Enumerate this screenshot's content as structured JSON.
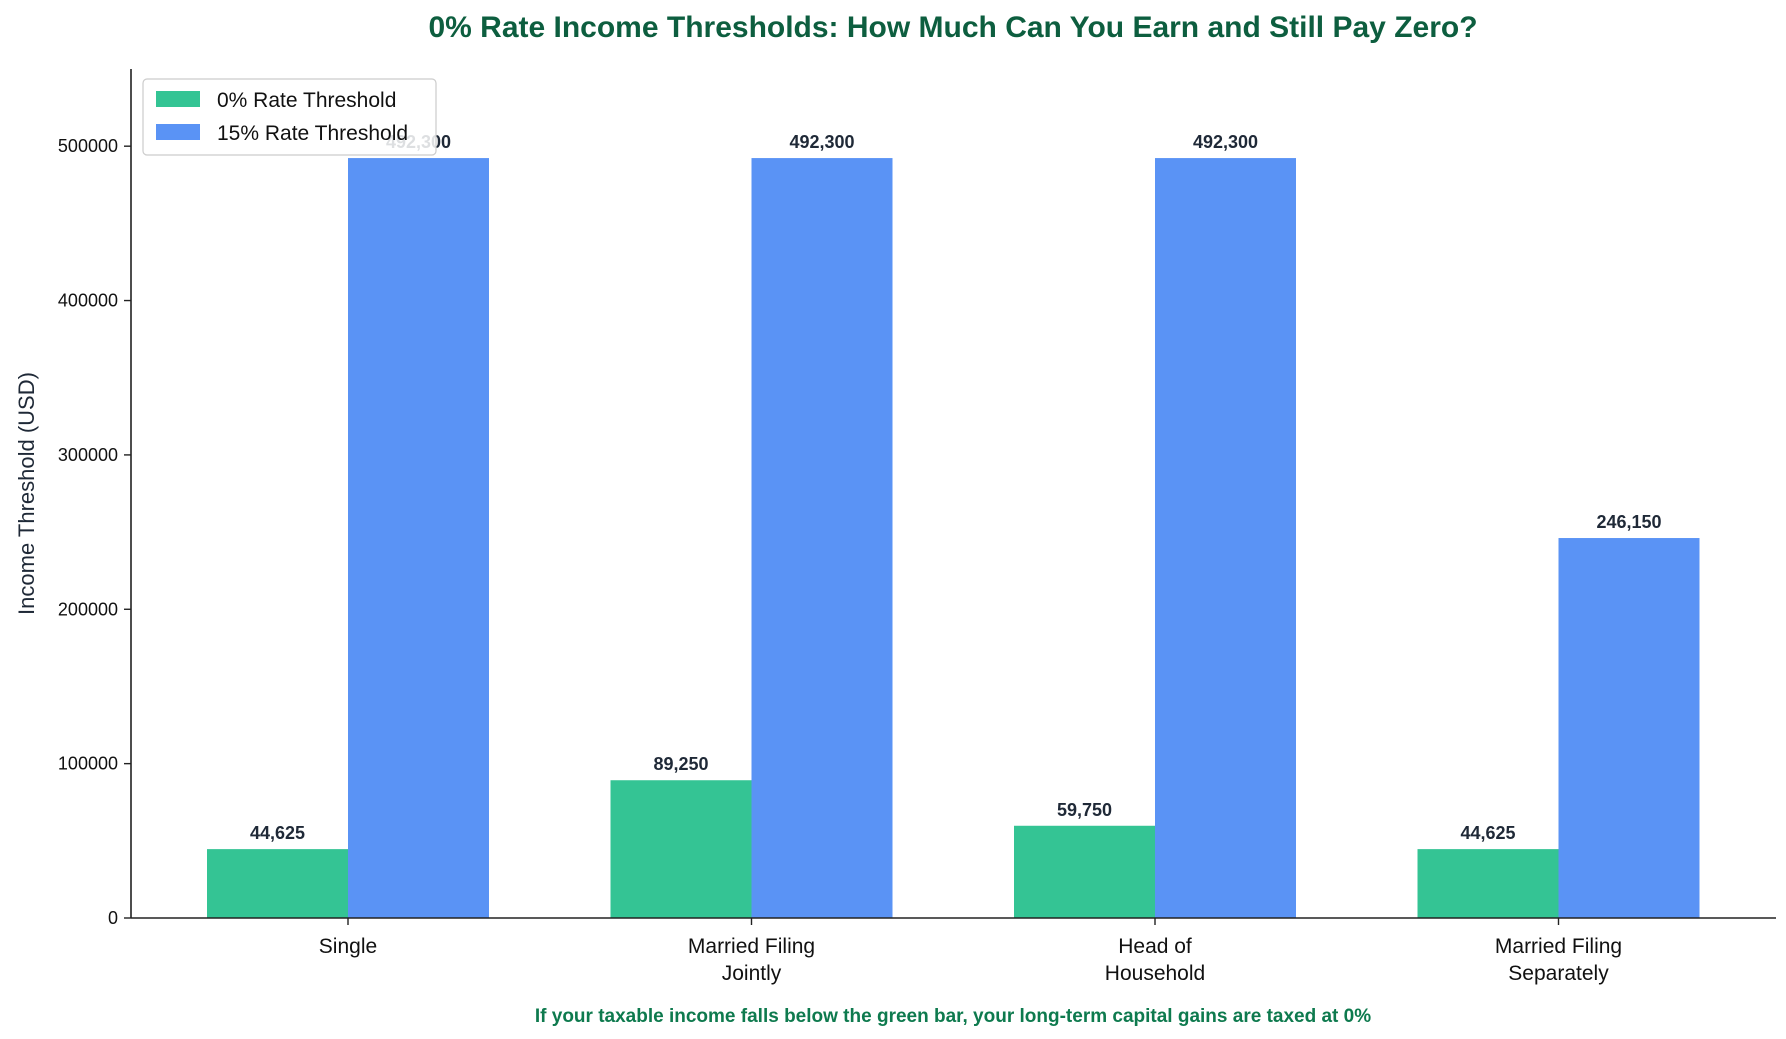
{
  "chart_data": {
    "type": "bar",
    "title": "0% Rate Income Thresholds: How Much Can You Earn and Still Pay Zero?",
    "xlabel": "",
    "ylabel": "Income Threshold (USD)",
    "categories": [
      [
        "Single"
      ],
      [
        "Married Filing",
        "Jointly"
      ],
      [
        "Head of",
        "Household"
      ],
      [
        "Married Filing",
        "Separately"
      ]
    ],
    "series": [
      {
        "name": "0% Rate Threshold",
        "color": "#34c494",
        "values": [
          44625,
          89250,
          59750,
          44625
        ],
        "labels": [
          "44,625",
          "89,250",
          "59,750",
          "44,625"
        ]
      },
      {
        "name": "15% Rate Threshold",
        "color": "#5a93f5",
        "values": [
          492300,
          492300,
          492300,
          246150
        ],
        "labels": [
          "492,300",
          "492,300",
          "492,300",
          "246,150"
        ]
      }
    ],
    "ylim": [
      0,
      550000
    ],
    "yticks": [
      0,
      100000,
      200000,
      300000,
      400000,
      500000
    ],
    "ytick_labels": [
      "0",
      "100000",
      "200000",
      "300000",
      "400000",
      "500000"
    ],
    "grid": false,
    "legend_position": "top-left",
    "footnote": "If your taxable income falls below the green bar, your long-term capital gains are taxed at 0%",
    "colors": {
      "title": "#0d5e3f",
      "footnote": "#0e7a4e",
      "axis": "#222222",
      "text": "#1f2937"
    }
  }
}
